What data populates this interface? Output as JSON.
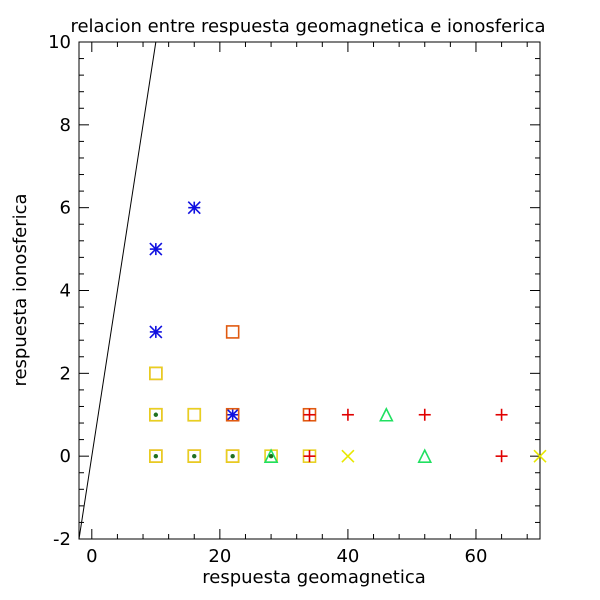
{
  "chart_data": {
    "type": "scatter",
    "title": "relacion entre respuesta geomagnetica e ionosferica",
    "xlabel": "respuesta geomagnetica",
    "ylabel": "respuesta ionosferica",
    "xlim": [
      -2,
      70
    ],
    "ylim": [
      -2,
      10
    ],
    "x_ticks": [
      0,
      20,
      40,
      60
    ],
    "y_ticks": [
      -2,
      0,
      2,
      4,
      6,
      8,
      10
    ],
    "x_minor_step": 4,
    "y_minor_step": 0.4,
    "reference_line": {
      "kind": "identity",
      "from": [
        -2,
        -2
      ],
      "to": [
        10,
        10
      ],
      "color": "#000000"
    },
    "series": [
      {
        "marker": "asterisk",
        "color": "#1010e0",
        "points": [
          [
            10,
            5
          ],
          [
            10,
            3
          ],
          [
            16,
            6
          ],
          [
            22,
            1
          ]
        ]
      },
      {
        "marker": "square",
        "color": "#e05a10",
        "points": [
          [
            10,
            2
          ],
          [
            10,
            1
          ],
          [
            10,
            0
          ],
          [
            16,
            1
          ],
          [
            16,
            0
          ],
          [
            22,
            3
          ],
          [
            22,
            1
          ],
          [
            22,
            0
          ],
          [
            34,
            1
          ]
        ]
      },
      {
        "marker": "square",
        "color": "#e8d020",
        "points": [
          [
            10,
            2
          ],
          [
            10,
            1
          ],
          [
            10,
            0
          ],
          [
            16,
            1
          ],
          [
            16,
            0
          ],
          [
            22,
            0
          ],
          [
            28,
            0
          ],
          [
            34,
            0
          ]
        ]
      },
      {
        "marker": "plus",
        "color": "#e00000",
        "points": [
          [
            34,
            1
          ],
          [
            34,
            0
          ],
          [
            40,
            1
          ],
          [
            52,
            1
          ],
          [
            64,
            1
          ],
          [
            64,
            0
          ]
        ]
      },
      {
        "marker": "triangle",
        "color": "#20e060",
        "points": [
          [
            28,
            0
          ],
          [
            46,
            1
          ],
          [
            52,
            0
          ]
        ]
      },
      {
        "marker": "cross",
        "color": "#e8e800",
        "points": [
          [
            40,
            0
          ],
          [
            70,
            0
          ]
        ]
      },
      {
        "marker": "dot",
        "color": "#207020",
        "points": [
          [
            10,
            1
          ],
          [
            10,
            0
          ],
          [
            16,
            0
          ],
          [
            22,
            0
          ],
          [
            28,
            0
          ]
        ]
      }
    ]
  }
}
